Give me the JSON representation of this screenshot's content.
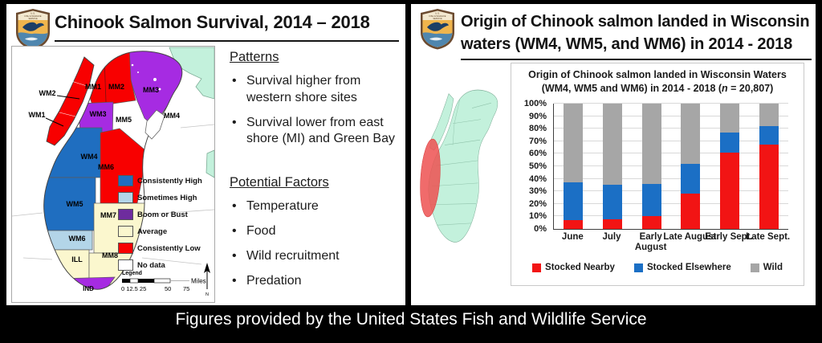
{
  "caption": "Figures provided by the United States Fish and Wildlife Service",
  "logo": {
    "line1": "U.S.",
    "line2": "FISH & WILDLIFE",
    "line3": "SERVICE"
  },
  "left_panel": {
    "title": "Chinook Salmon Survival, 2014 – 2018",
    "patterns": {
      "heading": "Patterns",
      "bullets": [
        "Survival higher from western shore sites",
        "Survival lower from east shore (MI) and Green Bay"
      ]
    },
    "factors": {
      "heading": "Potential Factors",
      "bullets": [
        "Temperature",
        "Food",
        "Wild recruitment",
        "Predation"
      ]
    },
    "map": {
      "labels": {
        "wm1": "WM1",
        "wm2": "WM2",
        "wm3": "WM3",
        "wm4": "WM4",
        "wm5": "WM5",
        "wm6": "WM6",
        "mm1": "MM1",
        "mm2": "MM2",
        "mm3": "MM3",
        "mm4": "MM4",
        "mm5": "MM5",
        "mm6": "MM6",
        "mm7": "MM7",
        "mm8": "MM8",
        "ill": "ILL",
        "ind": "IND"
      },
      "legend": [
        {
          "label": "Consistently High",
          "color": "#1F6EC0"
        },
        {
          "label": "Sometimes High",
          "color": "#B3D5E8"
        },
        {
          "label": "Boom or Bust",
          "color": "#6E2C9E"
        },
        {
          "label": "Average",
          "color": "#FBF7CE"
        },
        {
          "label": "Consistently Low",
          "color": "#F80000"
        },
        {
          "label": "No data",
          "color": "#FFFFFF"
        }
      ],
      "scale": {
        "title": "Legend",
        "units": "Miles",
        "ticks_small": "0 12.5 25",
        "tick_50": "50",
        "tick_75": "75",
        "north": "N"
      }
    }
  },
  "right_panel": {
    "title_line1": "Origin of Chinook salmon landed in Wisconsin",
    "title_line2": "waters (WM4, WM5, and WM6) in 2014 - 2018"
  },
  "chart_data": {
    "type": "bar",
    "stacked": true,
    "title": "Origin of Chinook salmon landed in Wisconsin Waters",
    "subtitle_pre": "(WM4, WM5 and WM6) in 2014 - 2018 (",
    "subtitle_n": "n",
    "subtitle_post": " = 20,807)",
    "n_total": "20,807",
    "categories": [
      "June",
      "July",
      "Early\nAugust",
      "Late August",
      "Early Sept.",
      "Late Sept."
    ],
    "series": [
      {
        "name": "Stocked Nearby",
        "color": "#F21414",
        "values": [
          7,
          8,
          10,
          28,
          61,
          67
        ]
      },
      {
        "name": "Stocked Elsewhere",
        "color": "#1B6FC5",
        "values": [
          30,
          27,
          26,
          24,
          16,
          15
        ]
      },
      {
        "name": "Wild",
        "color": "#A6A6A6",
        "values": [
          63,
          65,
          64,
          48,
          23,
          18
        ]
      }
    ],
    "ylim": [
      0,
      100
    ],
    "ytick_step": 10,
    "ytick_format": "percent",
    "grid": true,
    "legend_position": "bottom"
  }
}
